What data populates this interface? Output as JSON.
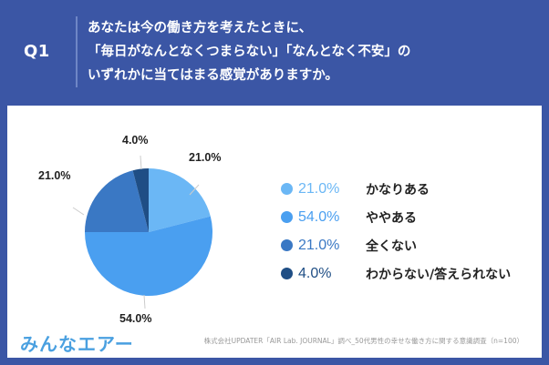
{
  "header": {
    "question_label": "Q1",
    "question_lines": [
      "あなたは今の働き方を考えたときに、",
      "「毎日がなんとなくつまらない」「なんとなく不安」の",
      "いずれかに当てはまる感覚がありますか。"
    ]
  },
  "colors": {
    "background": "#3b56a5",
    "slice_1": "#6bb7f5",
    "slice_2": "#4a9ff0",
    "slice_3": "#3a78c4",
    "slice_4": "#1f4e85"
  },
  "chart_data": {
    "type": "pie",
    "title": "あなたは今の働き方を考えたときに、「毎日がなんとなくつまらない」「なんとなく不安」のいずれかに当てはまる感覚がありますか。",
    "categories": [
      "かなりある",
      "ややある",
      "全くない",
      "わからない/答えられない"
    ],
    "values": [
      21.0,
      54.0,
      21.0,
      4.0
    ],
    "value_labels": [
      "21.0%",
      "54.0%",
      "21.0%",
      "4.0%"
    ],
    "colors": [
      "#6bb7f5",
      "#4a9ff0",
      "#3a78c4",
      "#1f4e85"
    ],
    "start_angle": "12 o'clock, clockwise",
    "legend_position": "right"
  },
  "legend": [
    {
      "pct": "21.0%",
      "label": "かなりある",
      "color": "#6bb7f5"
    },
    {
      "pct": "54.0%",
      "label": "ややある",
      "color": "#4a9ff0"
    },
    {
      "pct": "21.0%",
      "label": "全くない",
      "color": "#3a78c4"
    },
    {
      "pct": "4.0%",
      "label": "わからない/答えられない",
      "color": "#1f4e85"
    }
  ],
  "footer": {
    "logo": "みんなエアー",
    "source": "株式会社UPDATER「AIR Lab. JOURNAL」調べ_50代男性の幸せな働き方に関する意識調査（n=100）"
  }
}
